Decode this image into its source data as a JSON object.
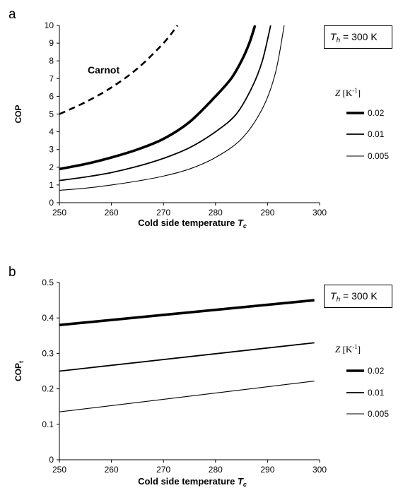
{
  "chart_data": [
    {
      "panel": "a",
      "type": "line",
      "xlabel": "Cold side temperature",
      "xlabel_var": "T",
      "xlabel_sub": "c",
      "ylabel": "COP",
      "xlim": [
        250,
        300
      ],
      "ylim": [
        0,
        10
      ],
      "xticks": [
        250,
        260,
        270,
        280,
        290,
        300
      ],
      "yticks": [
        0,
        1,
        2,
        3,
        4,
        5,
        6,
        7,
        8,
        9,
        10
      ],
      "box_label": {
        "var": "T",
        "sub": "h",
        "text": " = 300 K"
      },
      "legend_title": "Z [K",
      "legend_title_sup": "-1",
      "legend_title_end": "]",
      "annotation": "Carnot",
      "series": [
        {
          "name": "0.02",
          "style": "thick",
          "x": [
            250,
            255,
            260,
            265,
            270,
            275,
            280,
            283,
            285,
            286.5,
            287.6
          ],
          "y": [
            1.9,
            2.18,
            2.55,
            3.0,
            3.6,
            4.55,
            6.0,
            7.0,
            8.0,
            9.0,
            10.0
          ]
        },
        {
          "name": "0.01",
          "style": "medium",
          "x": [
            250,
            255,
            260,
            265,
            270,
            275,
            280,
            284,
            287,
            289,
            290.6
          ],
          "y": [
            1.25,
            1.45,
            1.7,
            2.05,
            2.5,
            3.1,
            4.0,
            5.0,
            6.5,
            8.0,
            10.0
          ]
        },
        {
          "name": "0.005",
          "style": "thin",
          "x": [
            250,
            255,
            260,
            265,
            270,
            275,
            280,
            285,
            289,
            291.5,
            293.2
          ],
          "y": [
            0.7,
            0.82,
            1.0,
            1.22,
            1.5,
            1.9,
            2.55,
            3.6,
            5.3,
            7.3,
            10.0
          ]
        },
        {
          "name": "Carnot",
          "style": "dashed",
          "x": [
            250,
            255,
            260,
            265,
            270,
            272.7
          ],
          "y": [
            5.0,
            5.67,
            6.5,
            7.57,
            9.0,
            10.0
          ]
        }
      ]
    },
    {
      "panel": "b",
      "type": "line",
      "xlabel": "Cold side temperature",
      "xlabel_var": "T",
      "xlabel_sub": "c",
      "ylabel": "COP",
      "ylabel_sub": "t",
      "xlim": [
        250,
        300
      ],
      "ylim": [
        0,
        0.5
      ],
      "xticks": [
        250,
        260,
        270,
        280,
        290,
        300
      ],
      "yticks": [
        0,
        0.1,
        0.2,
        0.3,
        0.4,
        0.5
      ],
      "box_label": {
        "var": "T",
        "sub": "h",
        "text": " = 300 K"
      },
      "legend_title": "Z [K",
      "legend_title_sup": "-1",
      "legend_title_end": "]",
      "series": [
        {
          "name": "0.02",
          "style": "thick",
          "x": [
            250,
            299
          ],
          "y": [
            0.38,
            0.45
          ]
        },
        {
          "name": "0.01",
          "style": "medium",
          "x": [
            250,
            299
          ],
          "y": [
            0.25,
            0.33
          ]
        },
        {
          "name": "0.005",
          "style": "thin",
          "x": [
            250,
            299
          ],
          "y": [
            0.135,
            0.222
          ]
        }
      ]
    }
  ]
}
